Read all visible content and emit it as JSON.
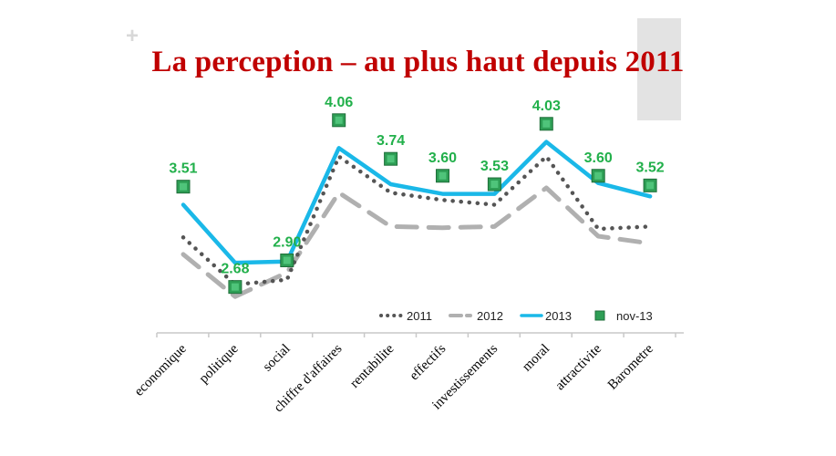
{
  "page": {
    "plus_symbol": "+",
    "title": "La perception – au plus haut depuis 2011"
  },
  "chart_data": {
    "type": "line",
    "title": "La perception – au plus haut depuis 2011",
    "xlabel": "",
    "ylabel": "",
    "ylim": [
      2.3,
      4.3
    ],
    "grid": false,
    "legend_position": "bottom-right",
    "categories": [
      "economique",
      "politique",
      "social",
      "chiffre d'affaires",
      "rentabilite",
      "effectifs",
      "investissements",
      "moral",
      "attractivite",
      "Barometre"
    ],
    "series": [
      {
        "name": "2011",
        "style": "dotted",
        "color": "#555555",
        "values": [
          3.09,
          2.7,
          2.74,
          3.76,
          3.46,
          3.4,
          3.36,
          3.76,
          3.16,
          3.18
        ]
      },
      {
        "name": "2012",
        "style": "dashed",
        "color": "#b0b0b0",
        "values": [
          2.95,
          2.6,
          2.8,
          3.46,
          3.18,
          3.17,
          3.18,
          3.5,
          3.1,
          3.04
        ]
      },
      {
        "name": "2013",
        "style": "solid",
        "color": "#1ab8e8",
        "values": [
          3.36,
          2.88,
          2.89,
          3.83,
          3.53,
          3.45,
          3.45,
          3.88,
          3.54,
          3.43
        ]
      },
      {
        "name": "nov-13",
        "style": "marker",
        "color": "#2e9e55",
        "values": [
          3.51,
          2.68,
          2.9,
          4.06,
          3.74,
          3.6,
          3.53,
          4.03,
          3.6,
          3.52
        ],
        "labels": [
          "3.51",
          "2.68",
          "2.90",
          "4.06",
          "3.74",
          "3.60",
          "3.53",
          "4.03",
          "3.60",
          "3.52"
        ]
      }
    ]
  }
}
